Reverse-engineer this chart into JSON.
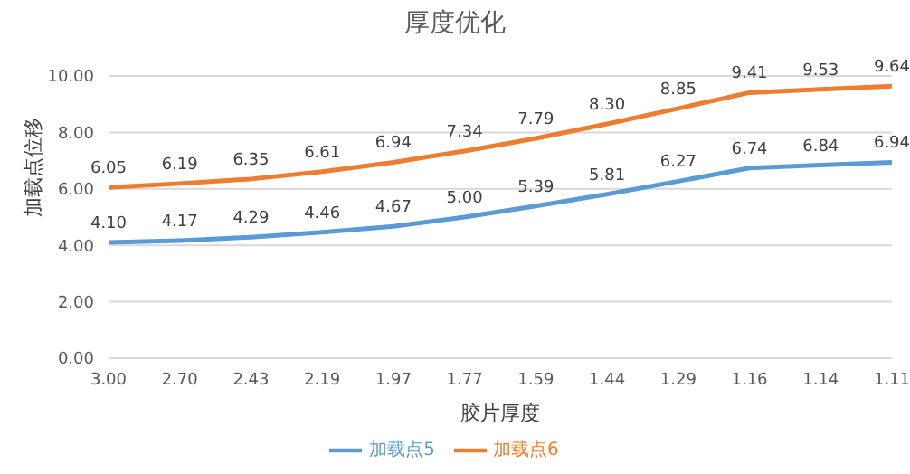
{
  "chart_data": {
    "type": "line",
    "title": "厚度优化",
    "xlabel": "胶片厚度",
    "ylabel": "加载点位移",
    "categories": [
      "3.00",
      "2.70",
      "2.43",
      "2.19",
      "1.97",
      "1.77",
      "1.59",
      "1.44",
      "1.29",
      "1.16",
      "1.14",
      "1.11"
    ],
    "series": [
      {
        "name": "加载点5",
        "color": "#5b9bd5",
        "values": [
          4.1,
          4.17,
          4.29,
          4.46,
          4.67,
          5.0,
          5.39,
          5.81,
          6.27,
          6.74,
          6.84,
          6.94
        ],
        "value_labels": [
          "4.10",
          "4.17",
          "4.29",
          "4.46",
          "4.67",
          "5.00",
          "5.39",
          "5.81",
          "6.27",
          "6.74",
          "6.84",
          "6.94"
        ]
      },
      {
        "name": "加载点6",
        "color": "#ed7d31",
        "values": [
          6.05,
          6.19,
          6.35,
          6.61,
          6.94,
          7.34,
          7.79,
          8.3,
          8.85,
          9.41,
          9.53,
          9.64
        ],
        "value_labels": [
          "6.05",
          "6.19",
          "6.35",
          "6.61",
          "6.94",
          "7.34",
          "7.79",
          "8.30",
          "8.85",
          "9.41",
          "9.53",
          "9.64"
        ]
      }
    ],
    "ylim": [
      0,
      10
    ],
    "yticks": [
      {
        "value": 0,
        "label": "0.00"
      },
      {
        "value": 2,
        "label": "2.00"
      },
      {
        "value": 4,
        "label": "4.00"
      },
      {
        "value": 6,
        "label": "6.00"
      },
      {
        "value": 8,
        "label": "8.00"
      },
      {
        "value": 10,
        "label": "10.00"
      }
    ],
    "grid": "y",
    "legend": "bottom",
    "marker": "none",
    "line_style": "solid"
  }
}
